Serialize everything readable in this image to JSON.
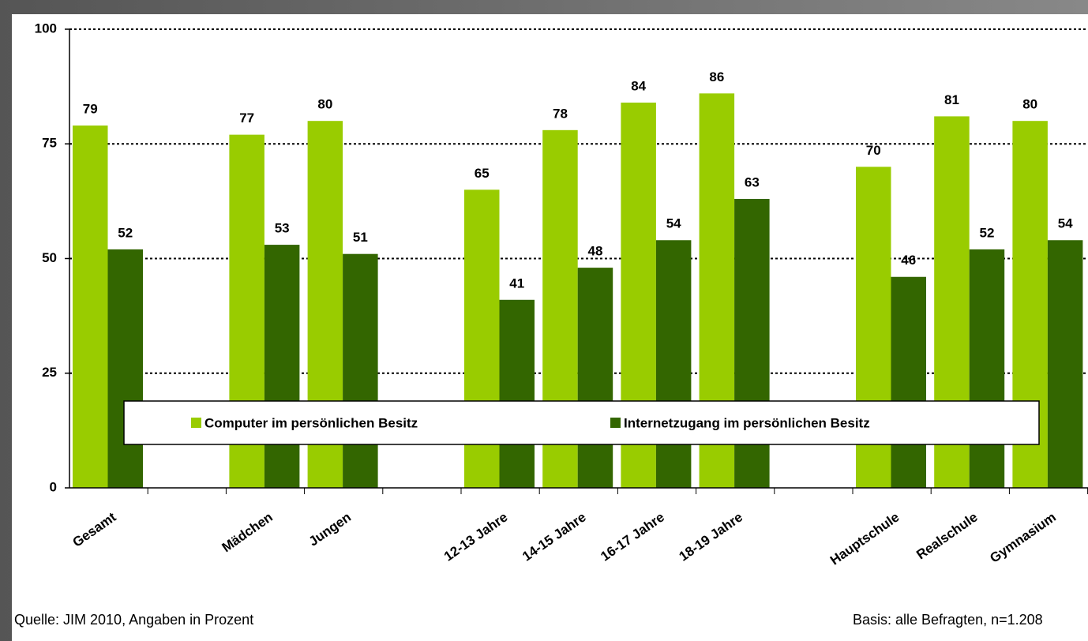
{
  "chart_data": {
    "type": "bar",
    "categories": [
      "Gesamt",
      null,
      "Mädchen",
      "Jungen",
      null,
      "12-13 Jahre",
      "14-15 Jahre",
      "16-17 Jahre",
      "18-19 Jahre",
      null,
      "Hauptschule",
      "Realschule",
      "Gymnasium"
    ],
    "series": [
      {
        "name": "Computer im persönlichen Besitz",
        "color": "#99cc00",
        "values": [
          79,
          null,
          77,
          80,
          null,
          65,
          78,
          84,
          86,
          null,
          70,
          81,
          80
        ]
      },
      {
        "name": "Internetzugang im persönlichen Besitz",
        "color": "#336600",
        "values": [
          52,
          null,
          53,
          51,
          null,
          41,
          48,
          54,
          63,
          null,
          46,
          52,
          54
        ]
      }
    ],
    "ylim": [
      0,
      100
    ],
    "yticks": [
      0,
      25,
      50,
      75,
      100
    ],
    "grid": true,
    "source": "Quelle: JIM 2010, Angaben in Prozent",
    "note": "Basis: alle Befragten, n=1.208"
  }
}
